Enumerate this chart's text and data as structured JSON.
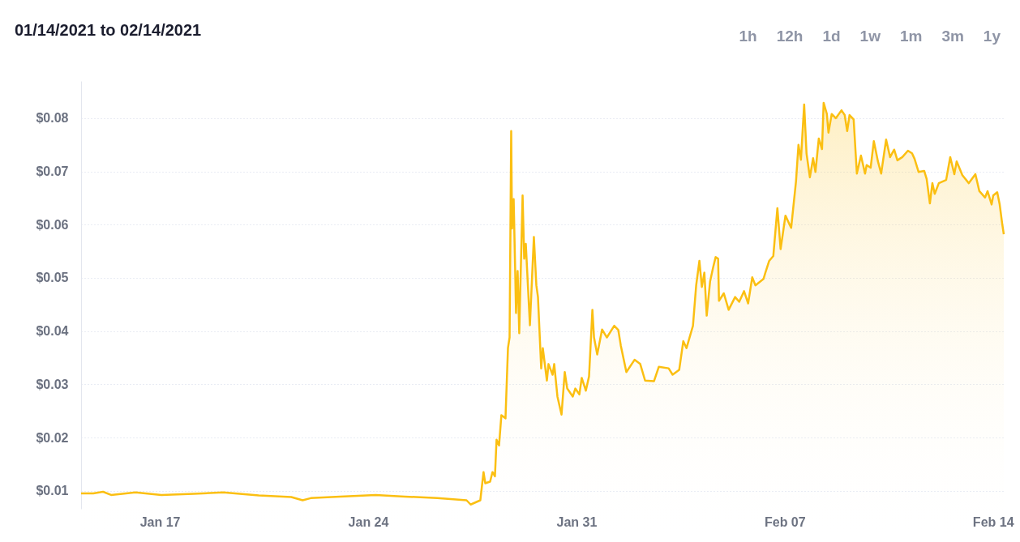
{
  "chart_data": {
    "type": "area",
    "title": "01/14/2021 to 02/14/2021",
    "annotations": [
      "1h",
      "12h",
      "1d",
      "1w",
      "1m",
      "3m",
      "1y"
    ],
    "x": [
      "2021-01-14T08:30",
      "2021-01-14T18:20",
      "2021-01-15T02:12",
      "2021-01-15T08:42",
      "2021-01-16T04:24",
      "2021-01-17T01:18",
      "2021-01-18T03:30",
      "2021-01-19T03:06",
      "2021-01-20T07:48",
      "2021-01-21T10:00",
      "2021-01-21T19:12",
      "2021-01-22T01:42",
      "2021-01-23T01:18",
      "2021-01-24T06:06",
      "2021-01-25T05:42",
      "2021-01-26T07:48",
      "2021-01-27T07:24",
      "2021-01-27T10:42",
      "2021-01-27T18:30",
      "2021-01-27T21:06",
      "2021-01-27T22:30",
      "2021-01-28T02:24",
      "2021-01-28T04:18",
      "2021-01-28T06:18",
      "2021-01-28T07:36",
      "2021-01-28T09:36",
      "2021-01-28T11:30",
      "2021-01-28T14:48",
      "2021-01-28T16:48",
      "2021-01-28T18:06",
      "2021-01-28T19:24",
      "2021-01-28T20:06",
      "2021-01-28T21:24",
      "2021-01-28T22:42",
      "2021-01-28T23:18",
      "2021-01-29T00:36",
      "2021-01-29T01:54",
      "2021-01-29T04:36",
      "2021-01-29T05:54",
      "2021-01-29T07:12",
      "2021-01-29T10:30",
      "2021-01-29T13:42",
      "2021-01-29T15:42",
      "2021-01-29T17:00",
      "2021-01-29T19:36",
      "2021-01-29T20:54",
      "2021-01-30T00:12",
      "2021-01-30T01:30",
      "2021-01-30T04:48",
      "2021-01-30T06:06",
      "2021-01-30T08:42",
      "2021-01-30T12:00",
      "2021-01-30T14:36",
      "2021-01-30T16:36",
      "2021-01-30T21:06",
      "2021-01-30T23:06",
      "2021-01-31T02:24",
      "2021-01-31T04:18",
      "2021-01-31T07:36",
      "2021-01-31T10:12",
      "2021-01-31T12:54",
      "2021-01-31T14:12",
      "2021-01-31T16:48",
      "2021-01-31T20:42",
      "2021-02-01T00:36",
      "2021-02-01T06:30",
      "2021-02-01T09:48",
      "2021-02-01T11:48",
      "2021-02-01T16:18",
      "2021-02-01T22:54",
      "2021-02-02T03:30",
      "2021-02-02T07:24",
      "2021-02-02T14:36",
      "2021-02-02T18:30",
      "2021-02-03T02:24",
      "2021-02-03T05:36",
      "2021-02-03T10:54",
      "2021-02-03T14:12",
      "2021-02-03T16:48",
      "2021-02-03T22:00",
      "2021-02-04T00:36",
      "2021-02-04T03:12",
      "2021-02-04T05:12",
      "2021-02-04T07:12",
      "2021-02-04T09:06",
      "2021-02-04T11:48",
      "2021-02-04T14:24",
      "2021-02-04T16:18",
      "2021-02-04T18:18",
      "2021-02-04T19:00",
      "2021-02-04T22:54",
      "2021-02-05T02:48",
      "2021-02-05T08:00",
      "2021-02-05T11:18",
      "2021-02-05T15:12",
      "2021-02-05T18:30",
      "2021-02-05T21:48",
      "2021-02-06T00:24",
      "2021-02-06T06:54",
      "2021-02-06T08:18",
      "2021-02-06T11:30",
      "2021-02-06T14:48",
      "2021-02-06T18:06",
      "2021-02-06T20:42",
      "2021-02-07T00:36",
      "2021-02-07T05:12",
      "2021-02-07T09:06",
      "2021-02-07T11:06",
      "2021-02-07T13:06",
      "2021-02-07T15:42",
      "2021-02-07T17:36",
      "2021-02-07T20:18",
      "2021-02-07T22:54",
      "2021-02-08T00:48",
      "2021-02-08T03:30",
      "2021-02-08T06:06",
      "2021-02-08T07:24",
      "2021-02-08T10:00",
      "2021-02-08T11:18",
      "2021-02-08T13:54",
      "2021-02-08T17:12",
      "2021-02-08T21:48",
      "2021-02-09T00:24",
      "2021-02-09T02:24",
      "2021-02-09T04:18",
      "2021-02-09T07:36",
      "2021-02-09T10:12",
      "2021-02-09T13:30",
      "2021-02-09T16:48",
      "2021-02-09T18:06",
      "2021-02-09T21:18",
      "2021-02-09T23:54",
      "2021-02-10T03:12",
      "2021-02-10T05:48",
      "2021-02-10T09:48",
      "2021-02-10T13:00",
      "2021-02-10T16:18",
      "2021-02-10T18:54",
      "2021-02-10T22:54",
      "2021-02-11T03:24",
      "2021-02-11T06:42",
      "2021-02-11T08:42",
      "2021-02-11T12:00",
      "2021-02-11T16:30",
      "2021-02-11T18:30",
      "2021-02-11T21:06",
      "2021-02-11T23:06",
      "2021-02-12T01:00",
      "2021-02-12T04:18",
      "2021-02-12T10:12",
      "2021-02-12T13:30",
      "2021-02-12T16:48",
      "2021-02-12T18:42",
      "2021-02-12T23:18",
      "2021-02-13T04:30",
      "2021-02-13T09:48",
      "2021-02-13T13:00",
      "2021-02-13T17:36",
      "2021-02-13T19:36",
      "2021-02-13T22:54",
      "2021-02-14T00:12",
      "2021-02-14T03:24",
      "2021-02-14T05:24",
      "2021-02-14T07:24",
      "2021-02-14T08:42"
    ],
    "series": [
      {
        "color": "#fbbf12",
        "values": [
          0.0095,
          0.0095,
          0.0098,
          0.0092,
          0.0097,
          0.0092,
          0.0094,
          0.0097,
          0.0091,
          0.0088,
          0.0082,
          0.0086,
          0.0089,
          0.0092,
          0.0089,
          0.0086,
          0.0082,
          0.0074,
          0.0082,
          0.0135,
          0.0114,
          0.0117,
          0.0135,
          0.0127,
          0.0196,
          0.0185,
          0.0242,
          0.0236,
          0.0368,
          0.0388,
          0.0776,
          0.0593,
          0.0648,
          0.0506,
          0.0434,
          0.0513,
          0.0396,
          0.0655,
          0.0536,
          0.0564,
          0.0411,
          0.0577,
          0.0486,
          0.0464,
          0.033,
          0.0368,
          0.0307,
          0.0338,
          0.0318,
          0.0338,
          0.0277,
          0.0243,
          0.0323,
          0.0292,
          0.0277,
          0.0292,
          0.0281,
          0.0312,
          0.0288,
          0.0315,
          0.044,
          0.0388,
          0.0356,
          0.0403,
          0.0388,
          0.041,
          0.0402,
          0.0373,
          0.0323,
          0.0346,
          0.0338,
          0.0307,
          0.0306,
          0.0333,
          0.033,
          0.0318,
          0.0327,
          0.0381,
          0.0368,
          0.041,
          0.0486,
          0.0532,
          0.0483,
          0.051,
          0.0429,
          0.0493,
          0.0521,
          0.0539,
          0.0536,
          0.0457,
          0.0471,
          0.044,
          0.0464,
          0.0455,
          0.0475,
          0.0452,
          0.0501,
          0.0486,
          0.0498,
          0.0509,
          0.0532,
          0.0541,
          0.0631,
          0.0554,
          0.0617,
          0.0594,
          0.0681,
          0.075,
          0.0722,
          0.0826,
          0.0734,
          0.0689,
          0.0725,
          0.0699,
          0.0762,
          0.0742,
          0.0829,
          0.0808,
          0.0773,
          0.0808,
          0.08,
          0.0815,
          0.0806,
          0.0776,
          0.0806,
          0.0798,
          0.0696,
          0.073,
          0.0696,
          0.0712,
          0.0707,
          0.0757,
          0.0719,
          0.0696,
          0.076,
          0.0727,
          0.0741,
          0.0721,
          0.0727,
          0.0739,
          0.0734,
          0.0724,
          0.0699,
          0.0701,
          0.0686,
          0.064,
          0.0678,
          0.0658,
          0.0678,
          0.0684,
          0.0727,
          0.0695,
          0.0719,
          0.0693,
          0.0678,
          0.0695,
          0.0663,
          0.0651,
          0.0663,
          0.0638,
          0.0655,
          0.0661,
          0.0638,
          0.0602,
          0.0582
        ]
      }
    ],
    "xlim": [
      "2021-01-14T08:30",
      "2021-02-14T08:42"
    ],
    "xticks": [
      {
        "value": "2021-01-17",
        "label": "Jan 17"
      },
      {
        "value": "2021-01-24",
        "label": "Jan 24"
      },
      {
        "value": "2021-01-31",
        "label": "Jan 31"
      },
      {
        "value": "2021-02-07",
        "label": "Feb 07"
      },
      {
        "value": "2021-02-14",
        "label": "Feb 14"
      }
    ],
    "ylim": [
      0.0066,
      0.087
    ],
    "yticks": [
      {
        "value": 0.01,
        "label": "$0.01"
      },
      {
        "value": 0.02,
        "label": "$0.02"
      },
      {
        "value": 0.03,
        "label": "$0.03"
      },
      {
        "value": 0.04,
        "label": "$0.04"
      },
      {
        "value": 0.05,
        "label": "$0.05"
      },
      {
        "value": 0.06,
        "label": "$0.06"
      },
      {
        "value": 0.07,
        "label": "$0.07"
      },
      {
        "value": 0.08,
        "label": "$0.08"
      }
    ],
    "grid": "y"
  }
}
